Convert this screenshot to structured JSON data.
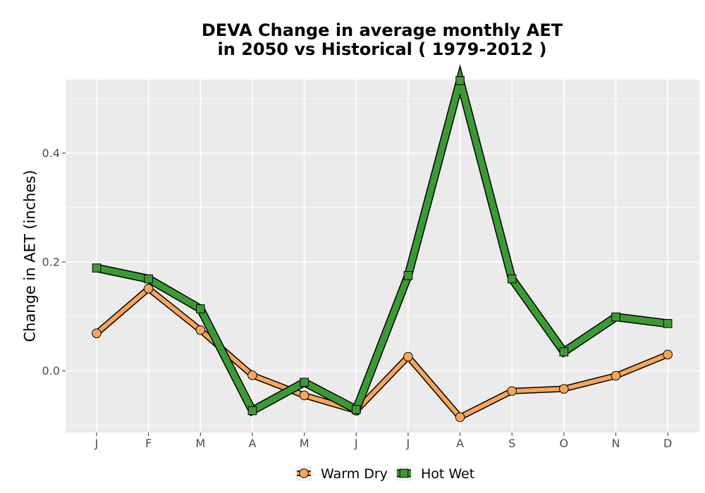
{
  "chart_data": {
    "type": "line",
    "title_line1": "DEVA  Change in average monthly AET",
    "title_line2": "in 2050 vs Historical ( 1979-2012 )",
    "xlabel": "",
    "ylabel": "Change in AET (inches)",
    "categories": [
      "J",
      "F",
      "M",
      "A",
      "M",
      "J",
      "J",
      "A",
      "S",
      "O",
      "N",
      "D"
    ],
    "y_ticks": [
      "0.0",
      "0.2",
      "0.4"
    ],
    "ylim": [
      -0.113,
      0.535
    ],
    "grid": true,
    "legend_position": "bottom",
    "series": [
      {
        "name": "Warm Dry",
        "color": "#F7A55A",
        "marker": "circle",
        "values": [
          0.069,
          0.151,
          0.075,
          -0.008,
          -0.045,
          -0.073,
          0.026,
          -0.085,
          -0.037,
          -0.033,
          -0.009,
          0.03
        ]
      },
      {
        "name": "Hot Wet",
        "color": "#3C9A35",
        "marker": "square",
        "values": [
          0.189,
          0.169,
          0.114,
          -0.073,
          -0.021,
          -0.071,
          0.175,
          0.533,
          0.169,
          0.035,
          0.099,
          0.087
        ]
      }
    ]
  }
}
